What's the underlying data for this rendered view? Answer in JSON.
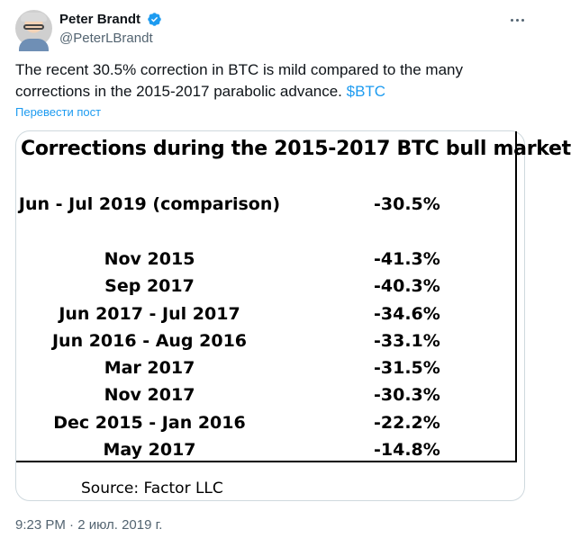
{
  "author": {
    "name": "Peter Brandt",
    "handle": "@PeterLBrandt",
    "verified_color": "#1d9bf0"
  },
  "tweet": {
    "text_before_cashtag": "The recent 30.5% correction in BTC is mild compared to the many corrections in the 2015-2017 parabolic advance. ",
    "cashtag": "$BTC",
    "translate_label": "Перевести пост",
    "timestamp": "9:23 PM · 2 июл. 2019 г."
  },
  "image": {
    "title": "Corrections during the 2015-2017 BTC bull market",
    "comparison": {
      "label": "Jun - Jul 2019 (comparison)",
      "value": "-30.5%"
    },
    "rows": [
      {
        "label": "Nov 2015",
        "value": "-41.3%"
      },
      {
        "label": "Sep 2017",
        "value": "-40.3%"
      },
      {
        "label": "Jun 2017 - Jul 2017",
        "value": "-34.6%"
      },
      {
        "label": "Jun 2016 - Aug 2016",
        "value": "-33.1%"
      },
      {
        "label": "Mar 2017",
        "value": "-31.5%"
      },
      {
        "label": "Nov 2017",
        "value": "-30.3%"
      },
      {
        "label": "Dec 2015 - Jan 2016",
        "value": "-22.2%"
      },
      {
        "label": "May 2017",
        "value": "-14.8%"
      }
    ],
    "source": "Source: Factor LLC"
  },
  "icons": {
    "verified": "verified-badge-icon",
    "more": "more-options-icon"
  }
}
